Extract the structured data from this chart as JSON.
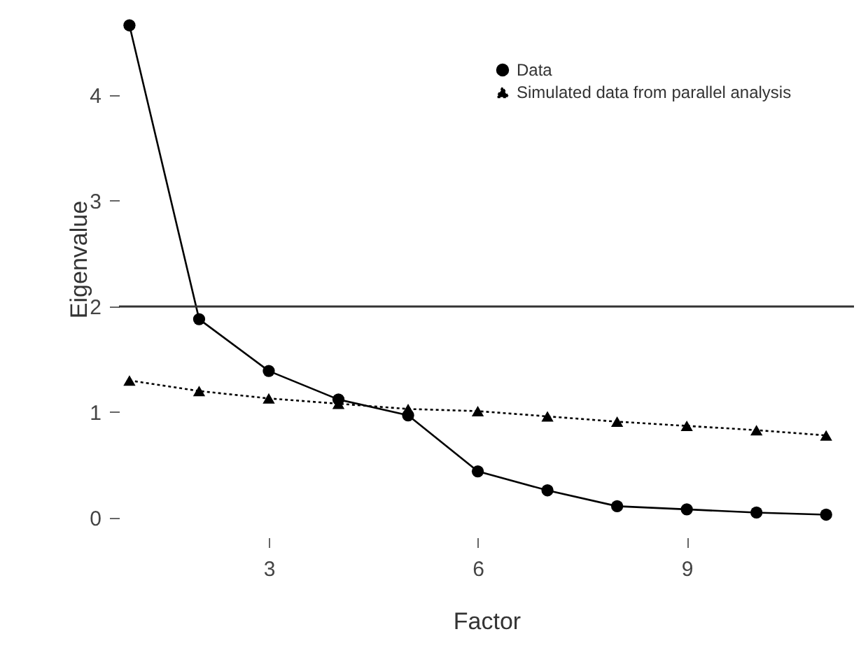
{
  "chart_data": {
    "type": "line",
    "xlabel": "Factor",
    "ylabel": "Eigenvalue",
    "x": [
      1,
      2,
      3,
      4,
      5,
      6,
      7,
      8,
      9,
      10,
      11
    ],
    "series": [
      {
        "name": "Data",
        "color": "#000000",
        "marker": "circle",
        "line_style": "solid",
        "values": [
          4.66,
          1.88,
          1.39,
          1.12,
          0.97,
          0.44,
          0.26,
          0.11,
          0.08,
          0.05,
          0.03
        ]
      },
      {
        "name": "Simulated data from parallel analysis",
        "color": "#000000",
        "marker": "triangle",
        "line_style": "dotted",
        "values": [
          1.3,
          1.2,
          1.13,
          1.08,
          1.03,
          1.01,
          0.96,
          0.91,
          0.87,
          0.83,
          0.78
        ]
      }
    ],
    "xlim": [
      0.85,
      11.4
    ],
    "ylim": [
      0,
      4.9
    ],
    "xticks": [
      3,
      6,
      9
    ],
    "yticks": [
      0,
      1,
      2,
      3,
      4
    ],
    "ref_lines": [
      {
        "axis": "y",
        "value": 2,
        "color": "#333333",
        "line_style": "solid"
      }
    ],
    "grid": false,
    "legend": "top right"
  }
}
